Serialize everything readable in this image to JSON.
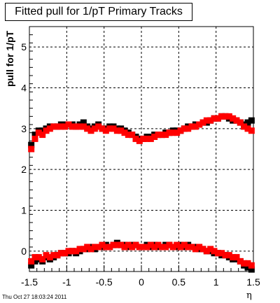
{
  "chart_data": {
    "type": "scatter",
    "title": "Fitted pull for 1/pT  Primary Tracks",
    "xlabel": "η",
    "ylabel": "pull for 1/pT",
    "xlim": [
      -1.5,
      1.5
    ],
    "ylim": [
      -0.5,
      5.5
    ],
    "x_ticks": [
      -1.5,
      -1,
      -0.5,
      0,
      0.5,
      1,
      1.5
    ],
    "x_tick_labels": [
      "-1.5",
      "-1",
      "-0.5",
      "0",
      "0.5",
      "1",
      "1.5"
    ],
    "y_ticks": [
      0,
      1,
      2,
      3,
      4,
      5
    ],
    "y_tick_labels": [
      "0",
      "1",
      "2",
      "3",
      "4",
      "5"
    ],
    "grid": true,
    "legend": "none",
    "series": [
      {
        "color": "#000000",
        "marker": "square",
        "upper": [
          [
            -1.475,
            2.6
          ],
          [
            -1.425,
            2.85
          ],
          [
            -1.375,
            2.95
          ],
          [
            -1.325,
            2.95
          ],
          [
            -1.275,
            3.0
          ],
          [
            -1.225,
            3.05
          ],
          [
            -1.175,
            3.05
          ],
          [
            -1.125,
            3.05
          ],
          [
            -1.075,
            3.1
          ],
          [
            -1.025,
            3.1
          ],
          [
            -0.975,
            3.1
          ],
          [
            -0.925,
            3.1
          ],
          [
            -0.875,
            3.05
          ],
          [
            -0.825,
            3.1
          ],
          [
            -0.775,
            3.15
          ],
          [
            -0.725,
            3.05
          ],
          [
            -0.675,
            3.0
          ],
          [
            -0.625,
            3.05
          ],
          [
            -0.575,
            3.1
          ],
          [
            -0.525,
            3.0
          ],
          [
            -0.475,
            3.0
          ],
          [
            -0.425,
            3.05
          ],
          [
            -0.375,
            3.05
          ],
          [
            -0.325,
            3.0
          ],
          [
            -0.275,
            3.0
          ],
          [
            -0.225,
            2.95
          ],
          [
            -0.175,
            2.9
          ],
          [
            -0.125,
            2.85
          ],
          [
            -0.075,
            2.8
          ],
          [
            -0.025,
            2.75
          ],
          [
            0.025,
            2.75
          ],
          [
            0.075,
            2.8
          ],
          [
            0.125,
            2.8
          ],
          [
            0.175,
            2.85
          ],
          [
            0.225,
            2.85
          ],
          [
            0.275,
            2.85
          ],
          [
            0.325,
            2.9
          ],
          [
            0.375,
            2.9
          ],
          [
            0.425,
            2.95
          ],
          [
            0.475,
            2.95
          ],
          [
            0.525,
            2.95
          ],
          [
            0.575,
            3.0
          ],
          [
            0.625,
            3.05
          ],
          [
            0.675,
            3.05
          ],
          [
            0.725,
            3.1
          ],
          [
            0.775,
            3.1
          ],
          [
            0.825,
            3.15
          ],
          [
            0.875,
            3.15
          ],
          [
            0.925,
            3.2
          ],
          [
            0.975,
            3.25
          ],
          [
            1.025,
            3.25
          ],
          [
            1.075,
            3.3
          ],
          [
            1.125,
            3.3
          ],
          [
            1.175,
            3.25
          ],
          [
            1.225,
            3.2
          ],
          [
            1.275,
            3.2
          ],
          [
            1.325,
            3.15
          ],
          [
            1.375,
            3.1
          ],
          [
            1.425,
            3.15
          ],
          [
            1.475,
            3.2
          ]
        ],
        "lower": [
          [
            -1.475,
            -0.35
          ],
          [
            -1.425,
            -0.25
          ],
          [
            -1.375,
            -0.2
          ],
          [
            -1.325,
            -0.25
          ],
          [
            -1.275,
            -0.15
          ],
          [
            -1.225,
            -0.2
          ],
          [
            -1.175,
            -0.15
          ],
          [
            -1.125,
            -0.1
          ],
          [
            -1.075,
            -0.05
          ],
          [
            -1.025,
            -0.05
          ],
          [
            -0.975,
            -0.05
          ],
          [
            -0.925,
            0.0
          ],
          [
            -0.875,
            -0.05
          ],
          [
            -0.825,
            0.0
          ],
          [
            -0.775,
            0.05
          ],
          [
            -0.725,
            0.05
          ],
          [
            -0.675,
            0.1
          ],
          [
            -0.625,
            0.05
          ],
          [
            -0.575,
            0.1
          ],
          [
            -0.525,
            0.1
          ],
          [
            -0.475,
            0.15
          ],
          [
            -0.425,
            0.1
          ],
          [
            -0.375,
            0.15
          ],
          [
            -0.325,
            0.2
          ],
          [
            -0.275,
            0.15
          ],
          [
            -0.225,
            0.15
          ],
          [
            -0.175,
            0.1
          ],
          [
            -0.125,
            0.15
          ],
          [
            -0.075,
            0.15
          ],
          [
            -0.025,
            0.1
          ],
          [
            0.025,
            0.1
          ],
          [
            0.075,
            0.15
          ],
          [
            0.125,
            0.1
          ],
          [
            0.175,
            0.15
          ],
          [
            0.225,
            0.1
          ],
          [
            0.275,
            0.1
          ],
          [
            0.325,
            0.15
          ],
          [
            0.375,
            0.15
          ],
          [
            0.425,
            0.1
          ],
          [
            0.475,
            0.1
          ],
          [
            0.525,
            0.15
          ],
          [
            0.575,
            0.1
          ],
          [
            0.625,
            0.15
          ],
          [
            0.675,
            0.1
          ],
          [
            0.725,
            0.1
          ],
          [
            0.775,
            0.05
          ],
          [
            0.825,
            0.05
          ],
          [
            0.875,
            0.0
          ],
          [
            0.925,
            0.0
          ],
          [
            0.975,
            -0.05
          ],
          [
            1.025,
            -0.05
          ],
          [
            1.075,
            -0.1
          ],
          [
            1.125,
            -0.1
          ],
          [
            1.175,
            -0.15
          ],
          [
            1.225,
            -0.2
          ],
          [
            1.275,
            -0.2
          ],
          [
            1.325,
            -0.25
          ],
          [
            1.375,
            -0.35
          ],
          [
            1.425,
            -0.4
          ],
          [
            1.475,
            -0.45
          ]
        ]
      },
      {
        "color": "#ff0000",
        "marker": "square",
        "upper": [
          [
            -1.475,
            2.5
          ],
          [
            -1.425,
            2.75
          ],
          [
            -1.375,
            2.9
          ],
          [
            -1.325,
            2.85
          ],
          [
            -1.275,
            2.95
          ],
          [
            -1.225,
            3.0
          ],
          [
            -1.175,
            3.05
          ],
          [
            -1.125,
            3.05
          ],
          [
            -1.075,
            3.05
          ],
          [
            -1.025,
            3.05
          ],
          [
            -0.975,
            3.1
          ],
          [
            -0.925,
            3.05
          ],
          [
            -0.875,
            3.05
          ],
          [
            -0.825,
            3.05
          ],
          [
            -0.775,
            3.05
          ],
          [
            -0.725,
            3.0
          ],
          [
            -0.675,
            2.95
          ],
          [
            -0.625,
            3.0
          ],
          [
            -0.575,
            3.05
          ],
          [
            -0.525,
            3.0
          ],
          [
            -0.475,
            2.95
          ],
          [
            -0.425,
            3.0
          ],
          [
            -0.375,
            3.0
          ],
          [
            -0.325,
            2.95
          ],
          [
            -0.275,
            2.95
          ],
          [
            -0.225,
            2.9
          ],
          [
            -0.175,
            2.85
          ],
          [
            -0.125,
            2.85
          ],
          [
            -0.075,
            2.75
          ],
          [
            -0.025,
            2.7
          ],
          [
            0.025,
            2.75
          ],
          [
            0.075,
            2.75
          ],
          [
            0.125,
            2.75
          ],
          [
            0.175,
            2.8
          ],
          [
            0.225,
            2.85
          ],
          [
            0.275,
            2.85
          ],
          [
            0.325,
            2.85
          ],
          [
            0.375,
            2.9
          ],
          [
            0.425,
            2.9
          ],
          [
            0.475,
            2.9
          ],
          [
            0.525,
            2.95
          ],
          [
            0.575,
            3.0
          ],
          [
            0.625,
            3.0
          ],
          [
            0.675,
            3.05
          ],
          [
            0.725,
            3.05
          ],
          [
            0.775,
            3.1
          ],
          [
            0.825,
            3.15
          ],
          [
            0.875,
            3.2
          ],
          [
            0.925,
            3.2
          ],
          [
            0.975,
            3.25
          ],
          [
            1.025,
            3.25
          ],
          [
            1.075,
            3.3
          ],
          [
            1.125,
            3.3
          ],
          [
            1.175,
            3.3
          ],
          [
            1.225,
            3.25
          ],
          [
            1.275,
            3.2
          ],
          [
            1.325,
            3.15
          ],
          [
            1.375,
            3.05
          ],
          [
            1.425,
            3.0
          ],
          [
            1.475,
            2.95
          ]
        ],
        "lower": [
          [
            -1.475,
            -0.25
          ],
          [
            -1.425,
            -0.15
          ],
          [
            -1.375,
            -0.15
          ],
          [
            -1.325,
            -0.2
          ],
          [
            -1.275,
            -0.1
          ],
          [
            -1.225,
            -0.15
          ],
          [
            -1.175,
            -0.1
          ],
          [
            -1.125,
            -0.1
          ],
          [
            -1.075,
            -0.05
          ],
          [
            -1.025,
            -0.05
          ],
          [
            -0.975,
            0.0
          ],
          [
            -0.925,
            0.0
          ],
          [
            -0.875,
            0.0
          ],
          [
            -0.825,
            0.05
          ],
          [
            -0.775,
            0.05
          ],
          [
            -0.725,
            0.1
          ],
          [
            -0.675,
            0.05
          ],
          [
            -0.625,
            0.1
          ],
          [
            -0.575,
            0.1
          ],
          [
            -0.525,
            0.15
          ],
          [
            -0.475,
            0.1
          ],
          [
            -0.425,
            0.1
          ],
          [
            -0.375,
            0.15
          ],
          [
            -0.325,
            0.15
          ],
          [
            -0.275,
            0.15
          ],
          [
            -0.225,
            0.1
          ],
          [
            -0.175,
            0.15
          ],
          [
            -0.125,
            0.1
          ],
          [
            -0.075,
            0.15
          ],
          [
            -0.025,
            0.1
          ],
          [
            0.025,
            0.1
          ],
          [
            0.075,
            0.1
          ],
          [
            0.125,
            0.15
          ],
          [
            0.175,
            0.1
          ],
          [
            0.225,
            0.15
          ],
          [
            0.275,
            0.1
          ],
          [
            0.325,
            0.1
          ],
          [
            0.375,
            0.15
          ],
          [
            0.425,
            0.1
          ],
          [
            0.475,
            0.15
          ],
          [
            0.525,
            0.1
          ],
          [
            0.575,
            0.15
          ],
          [
            0.625,
            0.1
          ],
          [
            0.675,
            0.1
          ],
          [
            0.725,
            0.05
          ],
          [
            0.775,
            0.1
          ],
          [
            0.825,
            0.05
          ],
          [
            0.875,
            0.0
          ],
          [
            0.925,
            0.05
          ],
          [
            0.975,
            0.0
          ],
          [
            1.025,
            -0.05
          ],
          [
            1.075,
            -0.05
          ],
          [
            1.125,
            -0.1
          ],
          [
            1.175,
            -0.1
          ],
          [
            1.225,
            -0.15
          ],
          [
            1.275,
            -0.15
          ],
          [
            1.325,
            -0.25
          ],
          [
            1.375,
            -0.3
          ],
          [
            1.425,
            -0.3
          ],
          [
            1.475,
            -0.35
          ]
        ]
      }
    ]
  },
  "footer": {
    "timestamp": "Thu Oct 27 18:03:24 2011"
  }
}
